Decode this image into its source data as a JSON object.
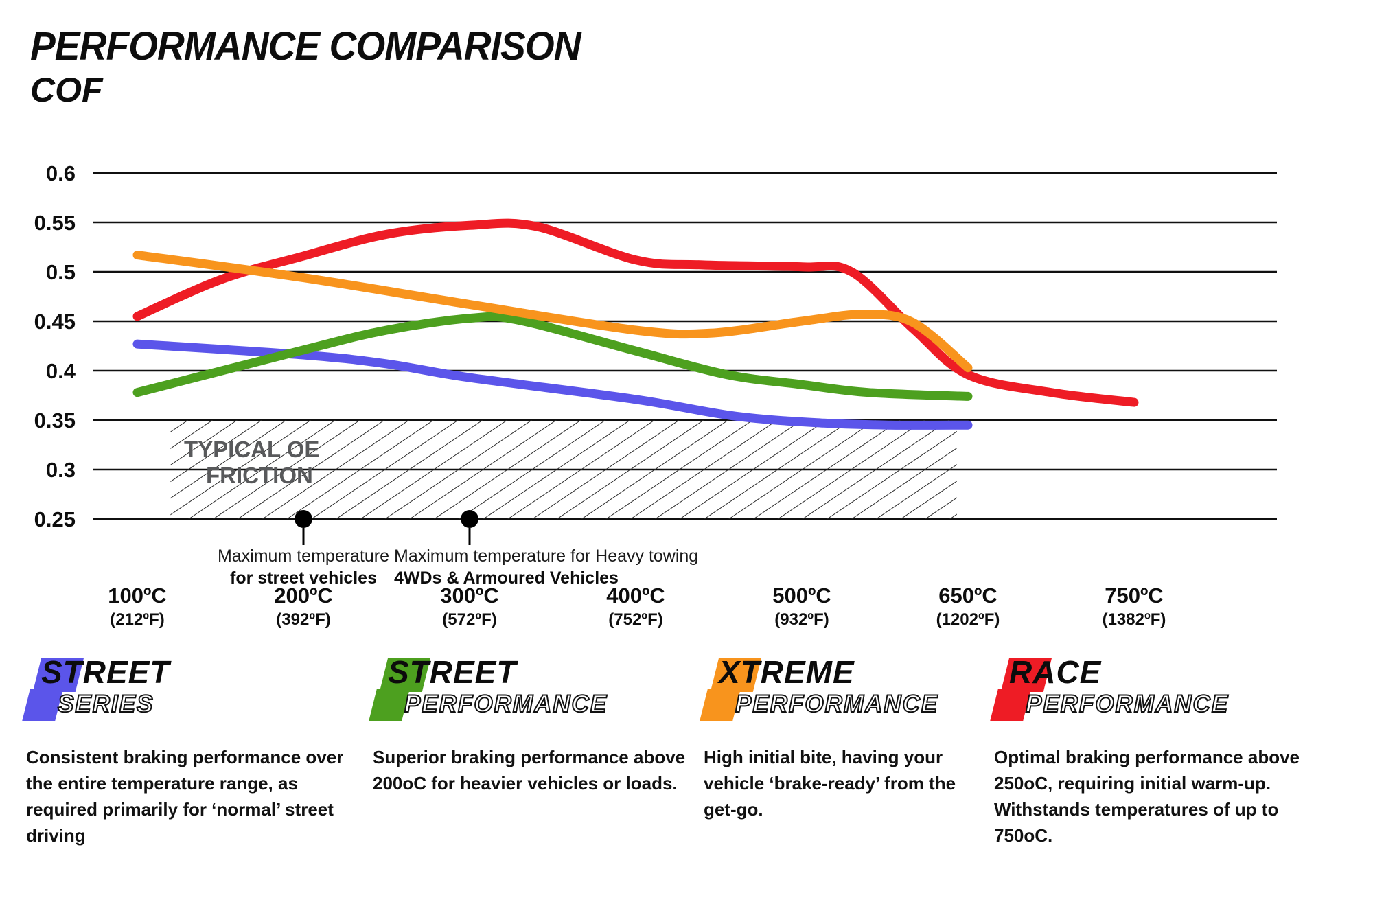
{
  "header": {
    "title": "PERFORMANCE COMPARISON",
    "axis_title": "COF"
  },
  "chart_data": {
    "type": "line",
    "title": "PERFORMANCE COMPARISON",
    "ylabel": "COF",
    "ylim": [
      0.25,
      0.6
    ],
    "yticks": [
      0.6,
      0.55,
      0.5,
      0.45,
      0.4,
      0.35,
      0.3,
      0.25
    ],
    "grid": "horizontal",
    "x_categories": [
      {
        "temp": 100,
        "label_c": "100ºC",
        "label_f": "(212ºF)"
      },
      {
        "temp": 200,
        "label_c": "200ºC",
        "label_f": "(392ºF)"
      },
      {
        "temp": 300,
        "label_c": "300ºC",
        "label_f": "(572ºF)"
      },
      {
        "temp": 400,
        "label_c": "400ºC",
        "label_f": "(752ºF)"
      },
      {
        "temp": 500,
        "label_c": "500ºC",
        "label_f": "(932ºF)"
      },
      {
        "temp": 650,
        "label_c": "650ºC",
        "label_f": "(1202ºF)"
      },
      {
        "temp": 750,
        "label_c": "750ºC",
        "label_f": "(1382ºF)"
      }
    ],
    "series": [
      {
        "name": "Street Series",
        "color": "#5b55ea",
        "points": [
          [
            100,
            0.427
          ],
          [
            200,
            0.416
          ],
          [
            250,
            0.407
          ],
          [
            300,
            0.393
          ],
          [
            400,
            0.371
          ],
          [
            460,
            0.354
          ],
          [
            520,
            0.347
          ],
          [
            580,
            0.345
          ],
          [
            650,
            0.345
          ]
        ]
      },
      {
        "name": "Street Performance",
        "color": "#4da01f",
        "points": [
          [
            100,
            0.378
          ],
          [
            200,
            0.421
          ],
          [
            250,
            0.441
          ],
          [
            300,
            0.453
          ],
          [
            330,
            0.451
          ],
          [
            400,
            0.42
          ],
          [
            455,
            0.396
          ],
          [
            500,
            0.386
          ],
          [
            560,
            0.378
          ],
          [
            650,
            0.374
          ]
        ]
      },
      {
        "name": "Race Performance",
        "color": "#ee1c25",
        "points": [
          [
            100,
            0.455
          ],
          [
            150,
            0.492
          ],
          [
            200,
            0.516
          ],
          [
            250,
            0.538
          ],
          [
            300,
            0.547
          ],
          [
            340,
            0.546
          ],
          [
            400,
            0.512
          ],
          [
            440,
            0.507
          ],
          [
            500,
            0.505
          ],
          [
            545,
            0.5
          ],
          [
            600,
            0.443
          ],
          [
            650,
            0.396
          ],
          [
            700,
            0.378
          ],
          [
            750,
            0.368
          ]
        ]
      },
      {
        "name": "Xtreme Performance",
        "color": "#f8941d",
        "points": [
          [
            100,
            0.517
          ],
          [
            200,
            0.494
          ],
          [
            300,
            0.467
          ],
          [
            400,
            0.441
          ],
          [
            445,
            0.438
          ],
          [
            500,
            0.45
          ],
          [
            555,
            0.457
          ],
          [
            600,
            0.449
          ],
          [
            650,
            0.403
          ]
        ]
      }
    ],
    "oe_band": {
      "label_line1": "TYPICAL OE",
      "label_line2": "FRICTION",
      "cof_from": 0.25,
      "cof_to": 0.35,
      "temp_from": 120,
      "temp_to": 640
    },
    "annotations": [
      {
        "temp": 200,
        "line1": "Maximum temperature",
        "line2": "for street vehicles"
      },
      {
        "temp": 300,
        "line1": "Maximum temperature for Heavy towing",
        "line2": "4WDs & Armoured Vehicles"
      }
    ]
  },
  "legend": [
    {
      "word1": "STREET",
      "word2": "SERIES",
      "color": "#5b55ea",
      "description": "Consistent braking performance over the entire temperature range, as required primarily for ‘normal’ street driving"
    },
    {
      "word1": "STREET",
      "word2": "PERFORMANCE",
      "color": "#4da01f",
      "description": "Superior braking performance above 200oC for heavier vehicles or loads."
    },
    {
      "word1": "XTREME",
      "word2": "PERFORMANCE",
      "color": "#f8941d",
      "description": "High initial bite, having your vehicle ‘brake-ready’ from the get-go."
    },
    {
      "word1": "RACE",
      "word2": "PERFORMANCE",
      "color": "#ee1c25",
      "description": "Optimal braking performance above 250oC, requiring initial warm-up. Withstands temperatures of up to 750oC."
    }
  ]
}
